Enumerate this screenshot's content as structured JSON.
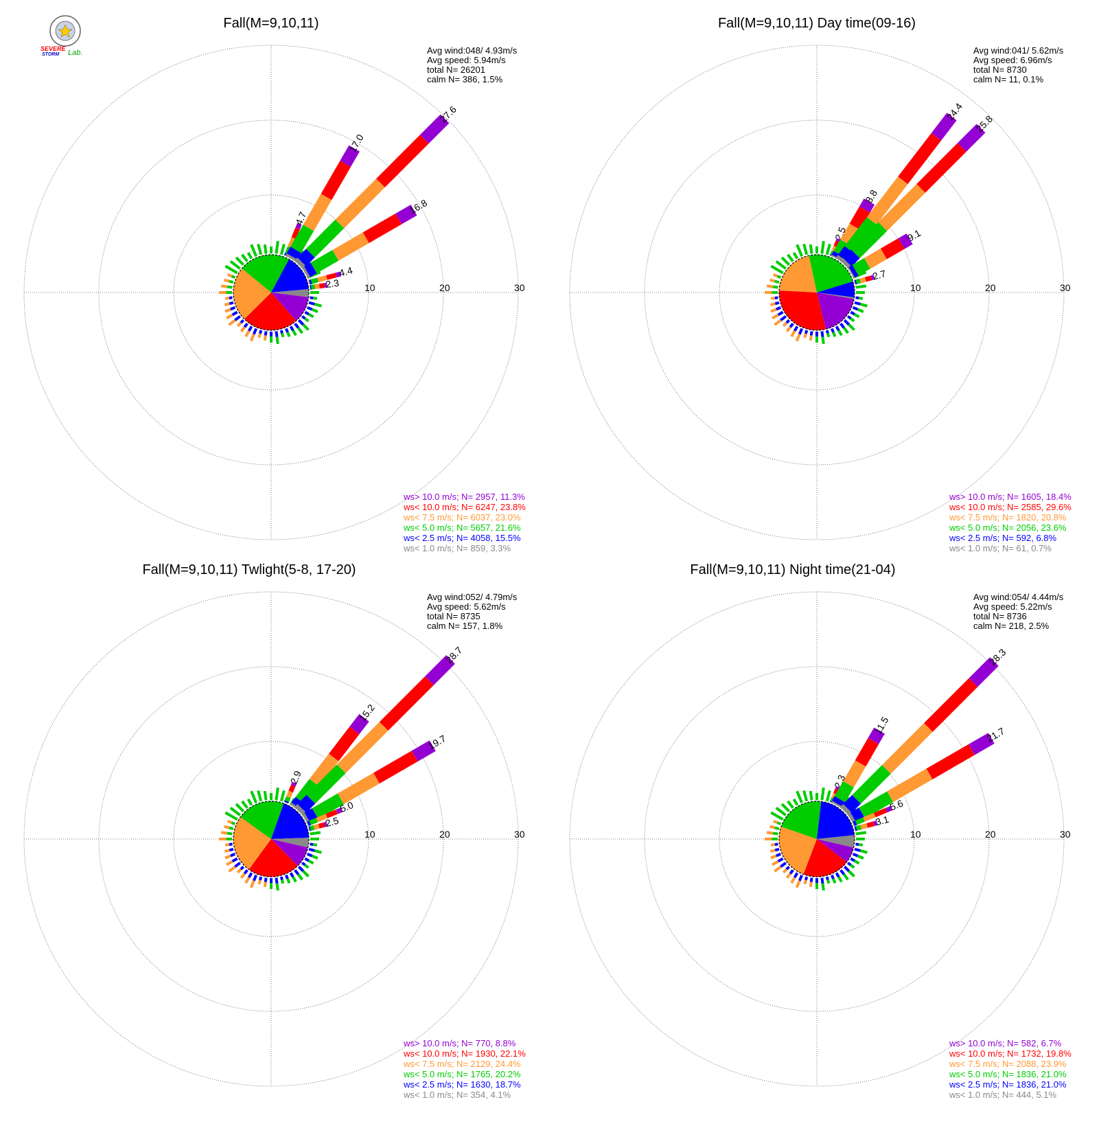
{
  "logo": {
    "text_top": "SEVERE",
    "text_bottom": "STORM",
    "text_lab": "Lab."
  },
  "colors": {
    "gt10": "#9400d3",
    "lt10": "#ff0000",
    "lt75": "#ff9933",
    "lt5": "#00cc00",
    "lt25": "#0000ff",
    "lt1": "#888888",
    "grid": "#555555",
    "text": "#000000"
  },
  "chart_data": [
    {
      "type": "wind-rose",
      "title": "Fall(M=9,10,11)",
      "stats": [
        "Avg wind:048/ 4.93m/s",
        "Avg speed: 5.94m/s",
        "total N=       26201",
        "calm N=    386,   1.5%"
      ],
      "rings": [
        10,
        20,
        30
      ],
      "petals": [
        {
          "dir": 22.5,
          "value": 4.7,
          "label": "4.7"
        },
        {
          "dir": 30,
          "value": 17.0,
          "label": "17.0"
        },
        {
          "dir": 45,
          "value": 27.6,
          "label": "27.6"
        },
        {
          "dir": 60,
          "value": 16.8,
          "label": "16.8"
        },
        {
          "dir": 75,
          "value": 4.4,
          "label": "4.4"
        },
        {
          "dir": 82.5,
          "value": 2.3,
          "label": "2.3"
        }
      ],
      "pie": [
        11.3,
        23.8,
        23.0,
        21.6,
        15.5,
        3.3
      ],
      "legend": [
        {
          "key": "gt10",
          "text": "ws> 10.0 m/s; N=   2957, 11.3%"
        },
        {
          "key": "lt10",
          "text": "ws< 10.0 m/s; N=   6247, 23.8%"
        },
        {
          "key": "lt75",
          "text": "ws<  7.5 m/s; N=   6037, 23.0%"
        },
        {
          "key": "lt5",
          "text": "ws<  5.0 m/s; N=   5657, 21.6%"
        },
        {
          "key": "lt25",
          "text": "ws<  2.5 m/s; N=   4058, 15.5%"
        },
        {
          "key": "lt1",
          "text": "ws<  1.0 m/s; N=    859,  3.3%"
        }
      ]
    },
    {
      "type": "wind-rose",
      "title": "Fall(M=9,10,11) Day time(09-16)",
      "stats": [
        "Avg wind:041/ 5.62m/s",
        "Avg speed: 6.96m/s",
        "total N=        8730",
        "calm N=     11,   0.1%"
      ],
      "rings": [
        10,
        20,
        30
      ],
      "petals": [
        {
          "dir": 22.5,
          "value": 2.5,
          "label": "2.5"
        },
        {
          "dir": 30,
          "value": 8.8,
          "label": "8.8"
        },
        {
          "dir": 37.5,
          "value": 24.4,
          "label": "24.4"
        },
        {
          "dir": 45,
          "value": 25.8,
          "label": "25.8"
        },
        {
          "dir": 60,
          "value": 9.1,
          "label": "9.1"
        },
        {
          "dir": 75,
          "value": 2.7,
          "label": "2.7"
        }
      ],
      "pie": [
        18.4,
        29.6,
        20.8,
        23.6,
        6.8,
        0.7
      ],
      "legend": [
        {
          "key": "gt10",
          "text": "ws> 10.0 m/s; N=   1605, 18.4%"
        },
        {
          "key": "lt10",
          "text": "ws< 10.0 m/s; N=   2585, 29.6%"
        },
        {
          "key": "lt75",
          "text": "ws<  7.5 m/s; N=   1820, 20.8%"
        },
        {
          "key": "lt5",
          "text": "ws<  5.0 m/s; N=   2056, 23.6%"
        },
        {
          "key": "lt25",
          "text": "ws<  2.5 m/s; N=    592,  6.8%"
        },
        {
          "key": "lt1",
          "text": "ws<  1.0 m/s; N=     61,  0.7%"
        }
      ]
    },
    {
      "type": "wind-rose",
      "title": "Fall(M=9,10,11) Twlight(5-8, 17-20)",
      "stats": [
        "Avg wind:052/ 4.79m/s",
        "Avg speed: 5.62m/s",
        "total N=        8735",
        "calm N=    157,   1.8%"
      ],
      "rings": [
        10,
        20,
        30
      ],
      "petals": [
        {
          "dir": 22.5,
          "value": 2.9,
          "label": "2.9"
        },
        {
          "dir": 37.5,
          "value": 15.2,
          "label": "15.2"
        },
        {
          "dir": 45,
          "value": 28.7,
          "label": "28.7"
        },
        {
          "dir": 60,
          "value": 19.7,
          "label": "19.7"
        },
        {
          "dir": 67.5,
          "value": 5.0,
          "label": "5.0"
        },
        {
          "dir": 75,
          "value": 2.5,
          "label": "2.5"
        }
      ],
      "pie": [
        8.8,
        22.1,
        24.4,
        20.2,
        18.7,
        4.1
      ],
      "legend": [
        {
          "key": "gt10",
          "text": "ws> 10.0 m/s; N=    770,  8.8%"
        },
        {
          "key": "lt10",
          "text": "ws< 10.0 m/s; N=   1930, 22.1%"
        },
        {
          "key": "lt75",
          "text": "ws<  7.5 m/s; N=   2129, 24.4%"
        },
        {
          "key": "lt5",
          "text": "ws<  5.0 m/s; N=   1765, 20.2%"
        },
        {
          "key": "lt25",
          "text": "ws<  2.5 m/s; N=   1630, 18.7%"
        },
        {
          "key": "lt1",
          "text": "ws<  1.0 m/s; N=    354,  4.1%"
        }
      ]
    },
    {
      "type": "wind-rose",
      "title": "Fall(M=9,10,11) Night time(21-04)",
      "stats": [
        "Avg wind:054/ 4.44m/s",
        "Avg speed: 5.22m/s",
        "total N=        8736",
        "calm N=    218,   2.5%"
      ],
      "rings": [
        10,
        20,
        30
      ],
      "petals": [
        {
          "dir": 22.5,
          "value": 2.3,
          "label": "2.3"
        },
        {
          "dir": 30,
          "value": 11.5,
          "label": "11.5"
        },
        {
          "dir": 45,
          "value": 28.3,
          "label": "28.3"
        },
        {
          "dir": 60,
          "value": 21.7,
          "label": "21.7"
        },
        {
          "dir": 67.5,
          "value": 5.6,
          "label": "5.6"
        },
        {
          "dir": 75,
          "value": 3.1,
          "label": "3.1"
        }
      ],
      "pie": [
        6.7,
        19.8,
        23.9,
        21.0,
        21.0,
        5.1
      ],
      "legend": [
        {
          "key": "gt10",
          "text": "ws> 10.0 m/s; N=    582,  6.7%"
        },
        {
          "key": "lt10",
          "text": "ws< 10.0 m/s; N=   1732, 19.8%"
        },
        {
          "key": "lt75",
          "text": "ws<  7.5 m/s; N=   2088, 23.9%"
        },
        {
          "key": "lt5",
          "text": "ws<  5.0 m/s; N=   1836, 21.0%"
        },
        {
          "key": "lt25",
          "text": "ws<  2.5 m/s; N=   1836, 21.0%"
        },
        {
          "key": "lt1",
          "text": "ws<  1.0 m/s; N=    444,  5.1%"
        }
      ]
    }
  ]
}
